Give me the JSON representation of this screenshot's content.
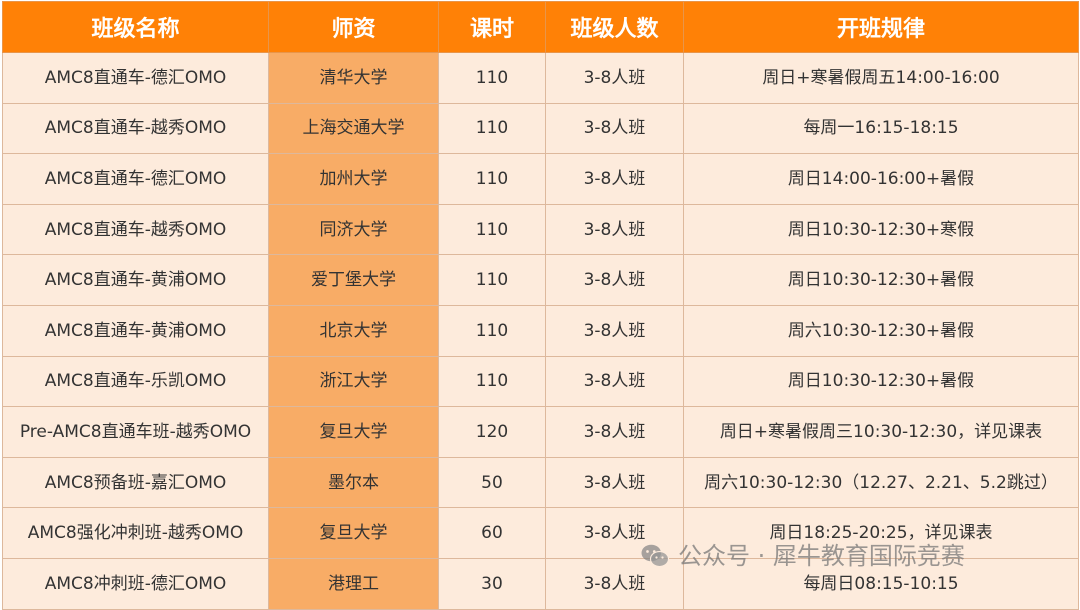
{
  "headers": [
    "班级名称",
    "师资",
    "课时",
    "班级人数",
    "开班规律"
  ],
  "rows": [
    [
      "AMC8直通车-德汇OMO",
      "清华大学",
      "110",
      "3-8人班",
      "周日+寒暑假周五14:00-16:00"
    ],
    [
      "AMC8直通车-越秀OMO",
      "上海交通大学",
      "110",
      "3-8人班",
      "每周一16:15-18:15"
    ],
    [
      "AMC8直通车-德汇OMO",
      "加州大学",
      "110",
      "3-8人班",
      "周日14:00-16:00+暑假"
    ],
    [
      "AMC8直通车-越秀OMO",
      "同济大学",
      "110",
      "3-8人班",
      "周日10:30-12:30+寒假"
    ],
    [
      "AMC8直通车-黄浦OMO",
      "爱丁堡大学",
      "110",
      "3-8人班",
      "周日10:30-12:30+暑假"
    ],
    [
      "AMC8直通车-黄浦OMO",
      "北京大学",
      "110",
      "3-8人班",
      "周六10:30-12:30+暑假"
    ],
    [
      "AMC8直通车-乐凯OMO",
      "浙江大学",
      "110",
      "3-8人班",
      "周日10:30-12:30+暑假"
    ],
    [
      "Pre-AMC8直通车班-越秀OMO",
      "复旦大学",
      "120",
      "3-8人班",
      "周日+寒暑假周三10:30-12:30，详见课表"
    ],
    [
      "AMC8预备班-嘉汇OMO",
      "墨尔本",
      "50",
      "3-8人班",
      "周六10:30-12:30（12.27、2.21、5.2跳过）"
    ],
    [
      "AMC8强化冲刺班-越秀OMO",
      "复旦大学",
      "60",
      "3-8人班",
      "周日18:25-20:25，详见课表"
    ],
    [
      "AMC8冲刺班-德汇OMO",
      "港理工",
      "30",
      "3-8人班",
      "每周日08:15-10:15"
    ]
  ],
  "watermark": {
    "icon": "wechat-icon",
    "text": "公众号 · 犀牛教育国际竞赛"
  },
  "colors": {
    "header": "#FF8106",
    "body": "#FDEBDC",
    "teacher_column": "#F8AC66"
  }
}
